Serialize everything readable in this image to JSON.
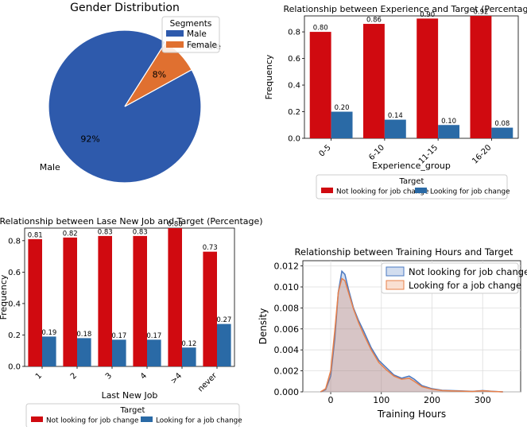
{
  "chart_data": [
    {
      "type": "pie",
      "title": "Gender Distribution",
      "legend_title": "Segments",
      "legend_position": "top-right",
      "slices": [
        {
          "label": "Male",
          "value": 92,
          "pct_label": "92%",
          "color": "#2e5aac"
        },
        {
          "label": "Female",
          "value": 8,
          "pct_label": "8%",
          "color": "#e07030"
        }
      ]
    },
    {
      "type": "bar",
      "title": "Relationship between Experience and Target (Percentage)",
      "xlabel": "Experience_group",
      "ylabel": "Frequency",
      "ylim": [
        0,
        0.92
      ],
      "yticks": [
        "0.0",
        "0.2",
        "0.4",
        "0.6",
        "0.8"
      ],
      "categories": [
        "0-5",
        "6-10",
        "11-15",
        "16-20"
      ],
      "legend_title": "Target",
      "legend_position": "below",
      "series": [
        {
          "name": "Not looking for job change",
          "color": "#d00a10",
          "values": [
            0.8,
            0.86,
            0.9,
            0.92
          ],
          "labels": [
            "0.80",
            "0.86",
            "0.90",
            "0.92"
          ]
        },
        {
          "name": "Looking for job change",
          "color": "#2a6aa6",
          "values": [
            0.2,
            0.14,
            0.1,
            0.08
          ],
          "labels": [
            "0.20",
            "0.14",
            "0.10",
            "0.08"
          ]
        }
      ]
    },
    {
      "type": "bar",
      "title": "Relationship between Lase New Job and Target (Percentage)",
      "xlabel": "Last New Job",
      "ylabel": "Frequency",
      "ylim": [
        0,
        0.88
      ],
      "yticks": [
        "0.0",
        "0.2",
        "0.4",
        "0.6",
        "0.8"
      ],
      "categories": [
        "1",
        "2",
        "3",
        "4",
        ">4",
        "never"
      ],
      "legend_title": "Target",
      "legend_position": "below",
      "series": [
        {
          "name": "Not looking for job change",
          "color": "#d00a10",
          "values": [
            0.81,
            0.82,
            0.83,
            0.83,
            0.88,
            0.73
          ],
          "labels": [
            "0.81",
            "0.82",
            "0.83",
            "0.83",
            "0.88",
            "0.73"
          ]
        },
        {
          "name": "Looking for a job change",
          "color": "#2a6aa6",
          "values": [
            0.19,
            0.18,
            0.17,
            0.17,
            0.12,
            0.27
          ],
          "labels": [
            "0.19",
            "0.18",
            "0.17",
            "0.17",
            "0.12",
            "0.27"
          ]
        }
      ]
    },
    {
      "type": "area",
      "title": "Relationship between Training Hours and Target",
      "xlabel": "Training Hours",
      "ylabel": "Density",
      "xlim": [
        -55,
        375
      ],
      "ylim": [
        0,
        0.0125
      ],
      "xticks": [
        "0",
        "100",
        "200",
        "300"
      ],
      "yticks": [
        "0.000",
        "0.002",
        "0.004",
        "0.006",
        "0.008",
        "0.010",
        "0.012"
      ],
      "grid": true,
      "legend_position": "top-right",
      "series": [
        {
          "name": "Not looking for job change",
          "color": "#4a78c0",
          "x": [
            -20,
            -10,
            0,
            8,
            15,
            22,
            28,
            35,
            45,
            55,
            65,
            80,
            95,
            110,
            125,
            140,
            155,
            165,
            180,
            200,
            220,
            250,
            280,
            300,
            320,
            340
          ],
          "y": [
            0.0,
            0.0002,
            0.0015,
            0.005,
            0.0095,
            0.0115,
            0.0112,
            0.0098,
            0.008,
            0.0068,
            0.0058,
            0.0042,
            0.003,
            0.0023,
            0.0016,
            0.0013,
            0.0015,
            0.0012,
            0.0006,
            0.0003,
            0.00015,
            0.0001,
            5e-05,
            0.00012,
            5e-05,
            0.0
          ]
        },
        {
          "name": "Looking for a job change",
          "color": "#e8804a",
          "x": [
            -20,
            -10,
            0,
            8,
            15,
            22,
            28,
            35,
            45,
            55,
            65,
            80,
            95,
            110,
            125,
            140,
            155,
            165,
            180,
            200,
            220,
            250,
            280,
            300,
            320,
            340
          ],
          "y": [
            0.0,
            0.0003,
            0.002,
            0.0058,
            0.0095,
            0.0108,
            0.0106,
            0.0095,
            0.0079,
            0.0066,
            0.0055,
            0.004,
            0.0028,
            0.0021,
            0.0015,
            0.0012,
            0.0013,
            0.001,
            0.0005,
            0.00025,
            0.00012,
            8e-05,
            4e-05,
            0.0001,
            4e-05,
            0.0
          ]
        }
      ]
    }
  ]
}
